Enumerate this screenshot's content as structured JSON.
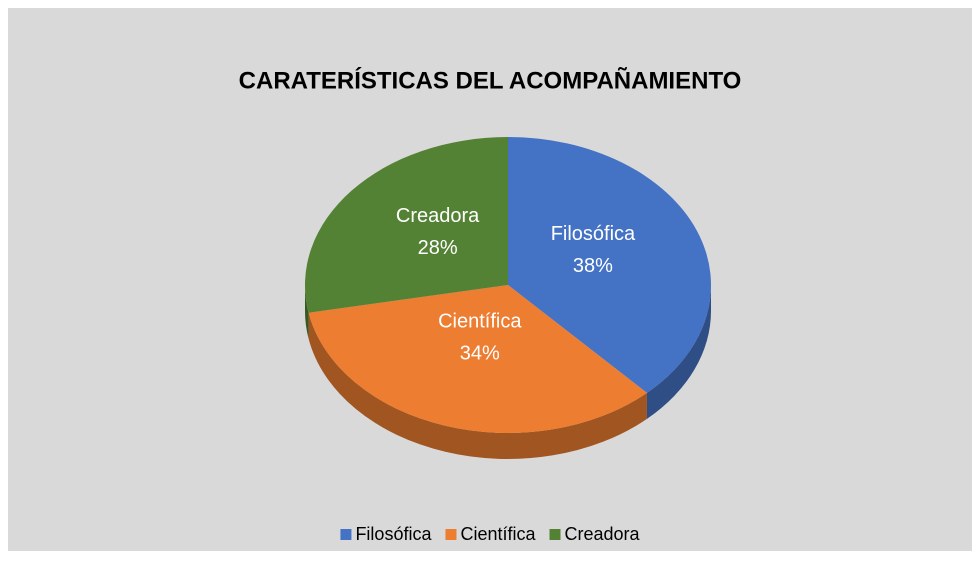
{
  "chart_data": {
    "type": "pie",
    "title": "CARATERÍSTICAS DEL ACOMPAÑAMIENTO",
    "categories": [
      "Filosófica",
      "Científica",
      "Creadora"
    ],
    "values": [
      38,
      34,
      28
    ],
    "value_labels": [
      "38%",
      "34%",
      "28%"
    ],
    "colors": [
      "#4472c4",
      "#ed7d31",
      "#548235"
    ],
    "legend": "bottom"
  }
}
